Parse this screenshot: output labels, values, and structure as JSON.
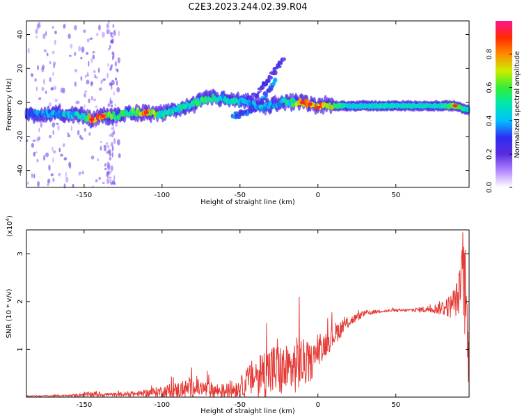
{
  "title": "C2E3.2023.244.02.39.R04",
  "colors": {
    "snr_line": "#e53935",
    "colormap": [
      "#ffffff",
      "#b388ff",
      "#5a2be0",
      "#2f2cf0",
      "#00bfff",
      "#00e6b0",
      "#33ee33",
      "#ccee00",
      "#ff8c00",
      "#ff2a00",
      "#ff1493"
    ]
  },
  "chart_data": [
    {
      "type": "heatmap",
      "xlabel": "Height of straight line (km)",
      "ylabel": "Frequency (Hz)",
      "xlim": [
        -187,
        97
      ],
      "ylim": [
        -50,
        48
      ],
      "xticks": [
        -150,
        -100,
        -50,
        0,
        50
      ],
      "yticks": [
        -40,
        -20,
        0,
        20,
        40
      ],
      "colorbar": {
        "label": "Normalized spectral amplitude",
        "range": [
          0,
          1
        ],
        "ticks": [
          0.0,
          0.2,
          0.4,
          0.6,
          0.8
        ]
      },
      "ridge": [
        {
          "x": -187,
          "f": -7,
          "amp": 0.35
        },
        {
          "x": -175,
          "f": -7,
          "amp": 0.4
        },
        {
          "x": -160,
          "f": -7,
          "amp": 0.45
        },
        {
          "x": -150,
          "f": -8,
          "amp": 0.5
        },
        {
          "x": -145,
          "f": -10,
          "amp": 0.9
        },
        {
          "x": -138,
          "f": -8,
          "amp": 0.85
        },
        {
          "x": -130,
          "f": -8,
          "amp": 0.55
        },
        {
          "x": -120,
          "f": -6,
          "amp": 0.55
        },
        {
          "x": -110,
          "f": -6,
          "amp": 0.85
        },
        {
          "x": -100,
          "f": -7,
          "amp": 0.5
        },
        {
          "x": -90,
          "f": -4,
          "amp": 0.5
        },
        {
          "x": -80,
          "f": -1,
          "amp": 0.55
        },
        {
          "x": -70,
          "f": 3,
          "amp": 0.6
        },
        {
          "x": -60,
          "f": 2,
          "amp": 0.45
        },
        {
          "x": -55,
          "f": 1,
          "amp": 0.55
        },
        {
          "x": -45,
          "f": 0,
          "amp": 0.4
        },
        {
          "x": -35,
          "f": -3,
          "amp": 0.45
        },
        {
          "x": -25,
          "f": 0,
          "amp": 0.4
        },
        {
          "x": -15,
          "f": 0,
          "amp": 0.6
        },
        {
          "x": -10,
          "f": 0,
          "amp": 0.85
        },
        {
          "x": -5,
          "f": -1,
          "amp": 0.8
        },
        {
          "x": 0,
          "f": -3,
          "amp": 0.85
        },
        {
          "x": 5,
          "f": -1,
          "amp": 0.75
        },
        {
          "x": 10,
          "f": -2,
          "amp": 0.75
        },
        {
          "x": 20,
          "f": -2,
          "amp": 0.55
        },
        {
          "x": 40,
          "f": -2,
          "amp": 0.6
        },
        {
          "x": 60,
          "f": -2,
          "amp": 0.6
        },
        {
          "x": 80,
          "f": -2,
          "amp": 0.6
        },
        {
          "x": 88,
          "f": -2,
          "amp": 0.85
        },
        {
          "x": 95,
          "f": -4,
          "amp": 0.6
        }
      ],
      "branches": [
        {
          "points": [
            [
              -50,
              0
            ],
            [
              -40,
              4
            ],
            [
              -35,
              10
            ],
            [
              -30,
              16
            ],
            [
              -25,
              22
            ],
            [
              -21,
              26
            ]
          ],
          "amp": 0.25
        },
        {
          "points": [
            [
              -55,
              -8
            ],
            [
              -50,
              -7
            ],
            [
              -45,
              -6
            ],
            [
              -40,
              -3
            ],
            [
              -35,
              2
            ],
            [
              -30,
              9
            ],
            [
              -27,
              13
            ]
          ],
          "amp": 0.35
        }
      ]
    },
    {
      "type": "line",
      "xlabel": "Height of straight line (km)",
      "ylabel": "SNR (10 * v/v)",
      "y_multiplier_label": "(x10",
      "y_multiplier_exponent": "4",
      "y_multiplier_close": ")",
      "xlim": [
        -187,
        97
      ],
      "ylim": [
        0,
        3.5
      ],
      "xticks": [
        -150,
        -100,
        -50,
        0,
        50
      ],
      "yticks": [
        1,
        2,
        3
      ],
      "envelope": [
        {
          "x": -187,
          "y": 0.02,
          "noise": 0.01
        },
        {
          "x": -160,
          "y": 0.03,
          "noise": 0.02
        },
        {
          "x": -145,
          "y": 0.06,
          "noise": 0.06
        },
        {
          "x": -130,
          "y": 0.05,
          "noise": 0.04
        },
        {
          "x": -115,
          "y": 0.07,
          "noise": 0.06
        },
        {
          "x": -100,
          "y": 0.12,
          "noise": 0.12
        },
        {
          "x": -90,
          "y": 0.14,
          "noise": 0.18
        },
        {
          "x": -80,
          "y": 0.2,
          "noise": 0.2
        },
        {
          "x": -70,
          "y": 0.15,
          "noise": 0.18
        },
        {
          "x": -60,
          "y": 0.12,
          "noise": 0.16
        },
        {
          "x": -50,
          "y": 0.2,
          "noise": 0.2
        },
        {
          "x": -40,
          "y": 0.45,
          "noise": 0.45
        },
        {
          "x": -30,
          "y": 0.55,
          "noise": 0.6
        },
        {
          "x": -20,
          "y": 0.55,
          "noise": 0.55
        },
        {
          "x": -12,
          "y": 0.7,
          "noise": 0.6
        },
        {
          "x": -5,
          "y": 0.7,
          "noise": 0.4
        },
        {
          "x": 0,
          "y": 0.95,
          "noise": 0.3
        },
        {
          "x": 10,
          "y": 1.3,
          "noise": 0.25
        },
        {
          "x": 20,
          "y": 1.58,
          "noise": 0.12
        },
        {
          "x": 30,
          "y": 1.75,
          "noise": 0.06
        },
        {
          "x": 40,
          "y": 1.8,
          "noise": 0.03
        },
        {
          "x": 60,
          "y": 1.82,
          "noise": 0.03
        },
        {
          "x": 75,
          "y": 1.85,
          "noise": 0.1
        },
        {
          "x": 85,
          "y": 1.9,
          "noise": 0.25
        },
        {
          "x": 90,
          "y": 2.1,
          "noise": 0.4
        },
        {
          "x": 93,
          "y": 2.5,
          "noise": 0.8
        },
        {
          "x": 95,
          "y": 1.9,
          "noise": 1.1
        },
        {
          "x": 97,
          "y": 0.6,
          "noise": 0.5
        }
      ],
      "spikes": [
        {
          "x": -12,
          "y": 2.1
        },
        {
          "x": -33,
          "y": 1.55
        },
        {
          "x": -26,
          "y": 1.22
        },
        {
          "x": -81,
          "y": 0.62
        },
        {
          "x": -71,
          "y": 0.55
        },
        {
          "x": 93,
          "y": 3.45
        }
      ]
    }
  ]
}
